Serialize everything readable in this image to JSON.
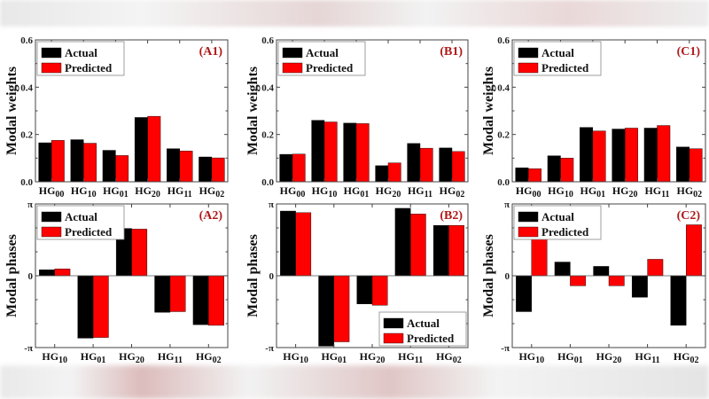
{
  "chart_data": [
    {
      "panel": "(A1)",
      "type": "bar",
      "ylabel": "Modal weights",
      "ylim": [
        0,
        0.6
      ],
      "yticks": [
        "0.0",
        "0.2",
        "0.4",
        "0.6"
      ],
      "ytick_values": [
        0,
        0.2,
        0.4,
        0.6
      ],
      "categories": [
        "HG00",
        "HG10",
        "HG01",
        "HG20",
        "HG11",
        "HG02"
      ],
      "legend": "top-left",
      "series": [
        {
          "name": "Actual",
          "color": "#000000",
          "values": [
            0.165,
            0.178,
            0.133,
            0.272,
            0.14,
            0.105
          ]
        },
        {
          "name": "Predicted",
          "color": "#ff0000",
          "values": [
            0.175,
            0.163,
            0.111,
            0.277,
            0.13,
            0.101
          ]
        }
      ]
    },
    {
      "panel": "(B1)",
      "type": "bar",
      "ylabel": "Modal weights",
      "ylim": [
        0,
        0.6
      ],
      "yticks": [
        "0.0",
        "0.2",
        "0.4",
        "0.6"
      ],
      "ytick_values": [
        0,
        0.2,
        0.4,
        0.6
      ],
      "categories": [
        "HG00",
        "HG10",
        "HG01",
        "HG20",
        "HG11",
        "HG02"
      ],
      "legend": "top-left",
      "series": [
        {
          "name": "Actual",
          "color": "#000000",
          "values": [
            0.116,
            0.26,
            0.248,
            0.068,
            0.162,
            0.143
          ]
        },
        {
          "name": "Predicted",
          "color": "#ff0000",
          "values": [
            0.117,
            0.253,
            0.246,
            0.08,
            0.142,
            0.128
          ]
        }
      ]
    },
    {
      "panel": "(C1)",
      "type": "bar",
      "ylabel": "Modal weights",
      "ylim": [
        0,
        0.6
      ],
      "yticks": [
        "0.0",
        "0.2",
        "0.4",
        "0.6"
      ],
      "ytick_values": [
        0,
        0.2,
        0.4,
        0.6
      ],
      "categories": [
        "HG00",
        "HG10",
        "HG01",
        "HG20",
        "HG11",
        "HG02"
      ],
      "legend": "top-left",
      "series": [
        {
          "name": "Actual",
          "color": "#000000",
          "values": [
            0.059,
            0.11,
            0.23,
            0.223,
            0.227,
            0.147
          ]
        },
        {
          "name": "Predicted",
          "color": "#ff0000",
          "values": [
            0.055,
            0.1,
            0.215,
            0.227,
            0.238,
            0.14
          ]
        }
      ]
    },
    {
      "panel": "(A2)",
      "type": "bar",
      "ylabel": "Modal phases",
      "ylim": [
        -3.1416,
        3.1416
      ],
      "yticks": [
        "-π",
        "0",
        "π"
      ],
      "ytick_values": [
        -3.1416,
        0,
        3.1416
      ],
      "categories": [
        "HG10",
        "HG01",
        "HG20",
        "HG11",
        "HG02"
      ],
      "legend": "top-left",
      "series": [
        {
          "name": "Actual",
          "color": "#000000",
          "values": [
            0.26,
            -2.73,
            2.07,
            -1.6,
            -2.14
          ]
        },
        {
          "name": "Predicted",
          "color": "#ff0000",
          "values": [
            0.3,
            -2.7,
            2.04,
            -1.57,
            -2.17
          ]
        }
      ]
    },
    {
      "panel": "(B2)",
      "type": "bar",
      "ylabel": "Modal phases",
      "ylim": [
        -3.1416,
        3.1416
      ],
      "yticks": [
        "-π",
        "0",
        "π"
      ],
      "ytick_values": [
        -3.1416,
        0,
        3.1416
      ],
      "categories": [
        "HG10",
        "HG01",
        "HG20",
        "HG11",
        "HG02"
      ],
      "legend": "bottom-right",
      "series": [
        {
          "name": "Actual",
          "color": "#000000",
          "values": [
            2.83,
            -3.08,
            -1.23,
            2.95,
            2.2
          ]
        },
        {
          "name": "Predicted",
          "color": "#ff0000",
          "values": [
            2.76,
            -2.89,
            -1.29,
            2.7,
            2.2
          ]
        }
      ]
    },
    {
      "panel": "(C2)",
      "type": "bar",
      "ylabel": "Modal phases",
      "ylim": [
        -3.1416,
        3.1416
      ],
      "yticks": [
        "-π",
        "0",
        "π"
      ],
      "ytick_values": [
        -3.1416,
        0,
        3.1416
      ],
      "categories": [
        "HG10",
        "HG01",
        "HG20",
        "HG11",
        "HG02"
      ],
      "legend": "top-left",
      "series": [
        {
          "name": "Actual",
          "color": "#000000",
          "values": [
            -1.57,
            0.6,
            0.41,
            -0.94,
            -2.17
          ]
        },
        {
          "name": "Predicted",
          "color": "#ff0000",
          "values": [
            1.63,
            -0.44,
            -0.44,
            0.72,
            2.23
          ]
        }
      ]
    }
  ],
  "panel_label_color": "#b01818"
}
